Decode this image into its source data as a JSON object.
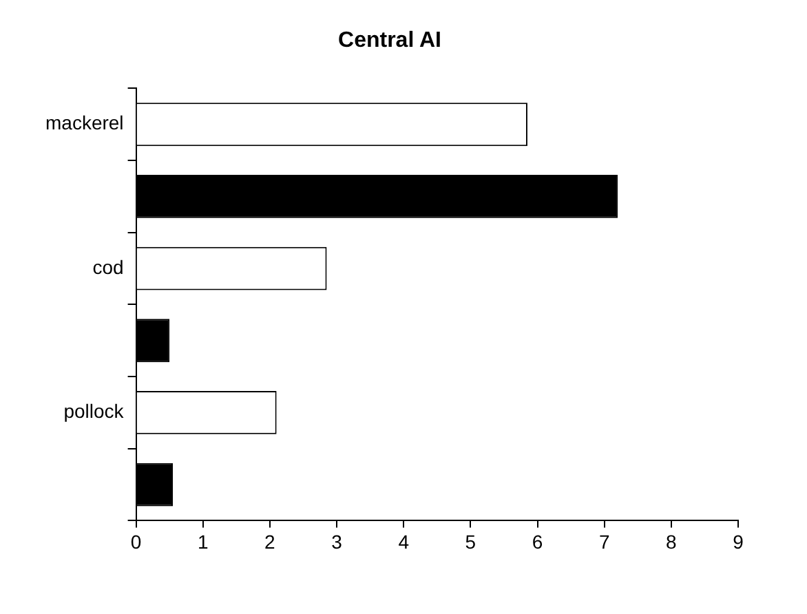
{
  "chart_data": {
    "type": "bar",
    "orientation": "horizontal",
    "title": "Central AI",
    "categories": [
      "mackerel",
      null,
      "cod",
      null,
      "pollock",
      null
    ],
    "values": [
      5.85,
      7.2,
      2.85,
      0.5,
      2.1,
      0.55
    ],
    "colors": [
      "#ffffff",
      "#000000",
      "#ffffff",
      "#000000",
      "#ffffff",
      "#000000"
    ],
    "xlim": [
      0,
      9
    ],
    "xticks": [
      0,
      1,
      2,
      3,
      4,
      5,
      6,
      7,
      8,
      9
    ],
    "grid": false,
    "legend": false
  }
}
